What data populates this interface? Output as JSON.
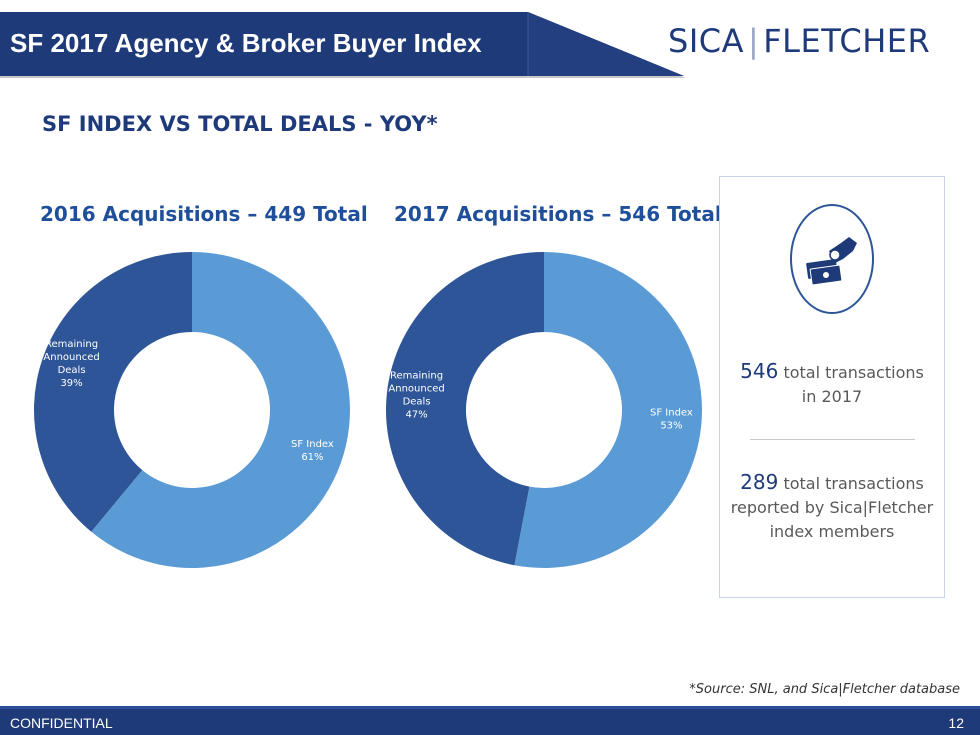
{
  "header": {
    "title": "SF 2017 Agency & Broker Buyer Index",
    "logo_left": "SICA",
    "logo_right": "FLETCHER"
  },
  "section_title": "SF INDEX VS TOTAL DEALS - YOY*",
  "colors": {
    "navy": "#1e3a78",
    "dark_slice": "#2d5597",
    "light_slice": "#5b9bd5",
    "accent_text": "#1f4f9a"
  },
  "chart_data": [
    {
      "type": "pie",
      "title": "2016 Acquisitions – 449 Total",
      "hole": true,
      "slices": [
        {
          "label": "SF Index",
          "value": 61,
          "display": "61%",
          "color": "#5b9bd5"
        },
        {
          "label": "Remaining Announced Deals",
          "value": 39,
          "display": "39%",
          "color": "#2d5597"
        }
      ]
    },
    {
      "type": "pie",
      "title": "2017 Acquisitions – 546 Total",
      "hole": true,
      "slices": [
        {
          "label": "SF Index",
          "value": 53,
          "display": "53%",
          "color": "#5b9bd5"
        },
        {
          "label": "Remaining Announced Deals",
          "value": 47,
          "display": "47%",
          "color": "#2d5597"
        }
      ]
    }
  ],
  "card": {
    "icon": "hand-money-icon",
    "stat1_number": "546",
    "stat1_line1": "total transactions",
    "stat1_line2": "in 2017",
    "stat2_number": "289",
    "stat2_line1": "total transactions",
    "stat2_line2": "reported by Sica|Fletcher",
    "stat2_line3": "index members"
  },
  "source_note": "*Source: SNL, and Sica|Fletcher database",
  "footer": {
    "left": "CONFIDENTIAL",
    "page_number": "12"
  }
}
